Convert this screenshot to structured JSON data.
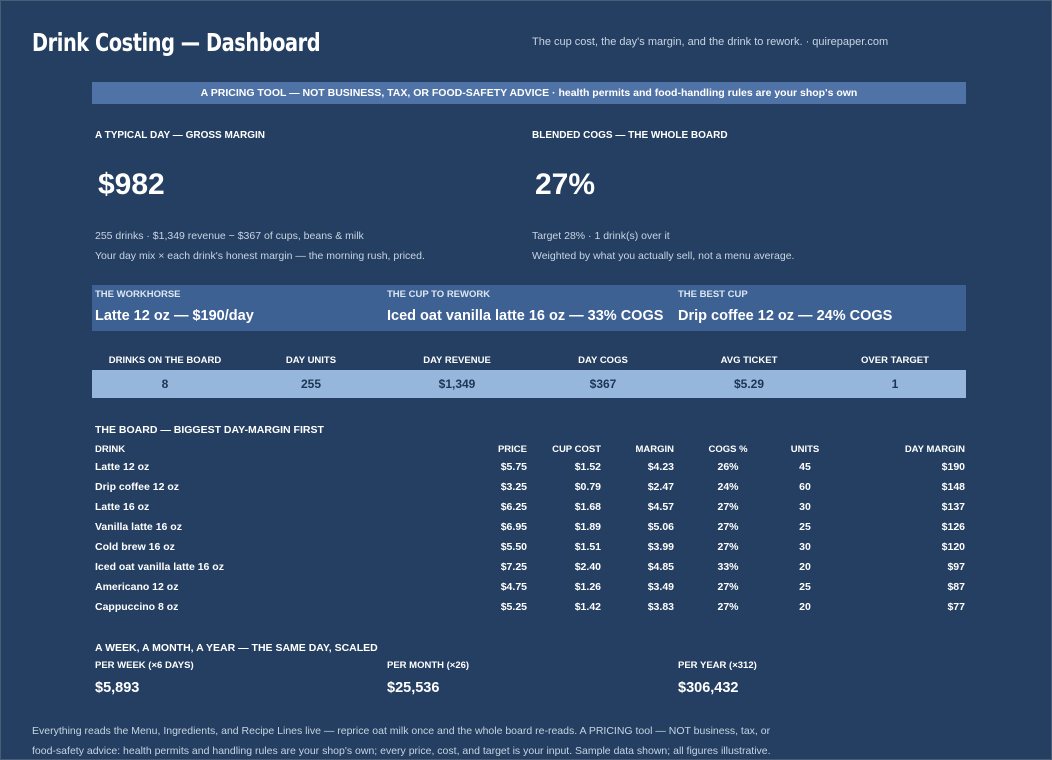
{
  "header": {
    "title": "Drink Costing — Dashboard",
    "tagline": "The cup cost, the day's margin, and the drink to rework.  ·  quirepaper.com"
  },
  "banner": "A PRICING TOOL — NOT BUSINESS, TAX, OR FOOD-SAFETY ADVICE  ·  health permits and food-handling rules are your shop's own",
  "gross_margin": {
    "label": "A TYPICAL DAY — GROSS MARGIN",
    "value": "$982",
    "line1": "255 drinks  ·  $1,349 revenue − $367 of cups, beans & milk",
    "line2": "Your day mix × each drink's honest margin — the morning rush, priced."
  },
  "cogs": {
    "label": "BLENDED COGS — THE WHOLE BOARD",
    "value": "27%",
    "line1": "Target 28%  ·  1 drink(s) over it",
    "line2": "Weighted by what you actually sell, not a menu average."
  },
  "hero": [
    {
      "label": "THE WORKHORSE",
      "value": "Latte 12 oz — $190/day"
    },
    {
      "label": "THE CUP TO REWORK",
      "value": "Iced oat vanilla latte 16 oz — 33% COGS"
    },
    {
      "label": "THE BEST CUP",
      "value": "Drip coffee 12 oz — 24% COGS"
    }
  ],
  "kpis": [
    {
      "label": "DRINKS ON THE BOARD",
      "value": "8"
    },
    {
      "label": "DAY UNITS",
      "value": "255"
    },
    {
      "label": "DAY REVENUE",
      "value": "$1,349"
    },
    {
      "label": "DAY COGS",
      "value": "$367"
    },
    {
      "label": "AVG TICKET",
      "value": "$5.29"
    },
    {
      "label": "OVER TARGET",
      "value": "1"
    }
  ],
  "board": {
    "title": "THE BOARD — BIGGEST DAY-MARGIN FIRST",
    "columns": [
      "DRINK",
      "PRICE",
      "CUP COST",
      "MARGIN",
      "COGS %",
      "UNITS",
      "DAY MARGIN"
    ],
    "rows": [
      [
        "Latte 12 oz",
        "$5.75",
        "$1.52",
        "$4.23",
        "26%",
        "45",
        "$190"
      ],
      [
        "Drip coffee 12 oz",
        "$3.25",
        "$0.79",
        "$2.47",
        "24%",
        "60",
        "$148"
      ],
      [
        "Latte 16 oz",
        "$6.25",
        "$1.68",
        "$4.57",
        "27%",
        "30",
        "$137"
      ],
      [
        "Vanilla latte 16 oz",
        "$6.95",
        "$1.89",
        "$5.06",
        "27%",
        "25",
        "$126"
      ],
      [
        "Cold brew 16 oz",
        "$5.50",
        "$1.51",
        "$3.99",
        "27%",
        "30",
        "$120"
      ],
      [
        "Iced oat vanilla latte 16 oz",
        "$7.25",
        "$2.40",
        "$4.85",
        "33%",
        "20",
        "$97"
      ],
      [
        "Americano 12 oz",
        "$4.75",
        "$1.26",
        "$3.49",
        "27%",
        "25",
        "$87"
      ],
      [
        "Cappuccino 8 oz",
        "$5.25",
        "$1.42",
        "$3.83",
        "27%",
        "20",
        "$77"
      ]
    ]
  },
  "scaled": {
    "title": "A WEEK, A MONTH, A YEAR — THE SAME DAY, SCALED",
    "items": [
      {
        "label": "PER WEEK (×6 DAYS)",
        "value": "$5,893"
      },
      {
        "label": "PER MONTH (×26)",
        "value": "$25,536"
      },
      {
        "label": "PER YEAR (×312)",
        "value": "$306,432"
      }
    ]
  },
  "footer": {
    "line1": "Everything reads the Menu, Ingredients, and Recipe Lines live — reprice oat milk once and the whole board re-reads. A PRICING tool — NOT business, tax, or",
    "line2": "food-safety advice: health permits and handling rules are your shop's own; every price, cost, and target is your input. Sample data shown; all figures illustrative."
  }
}
